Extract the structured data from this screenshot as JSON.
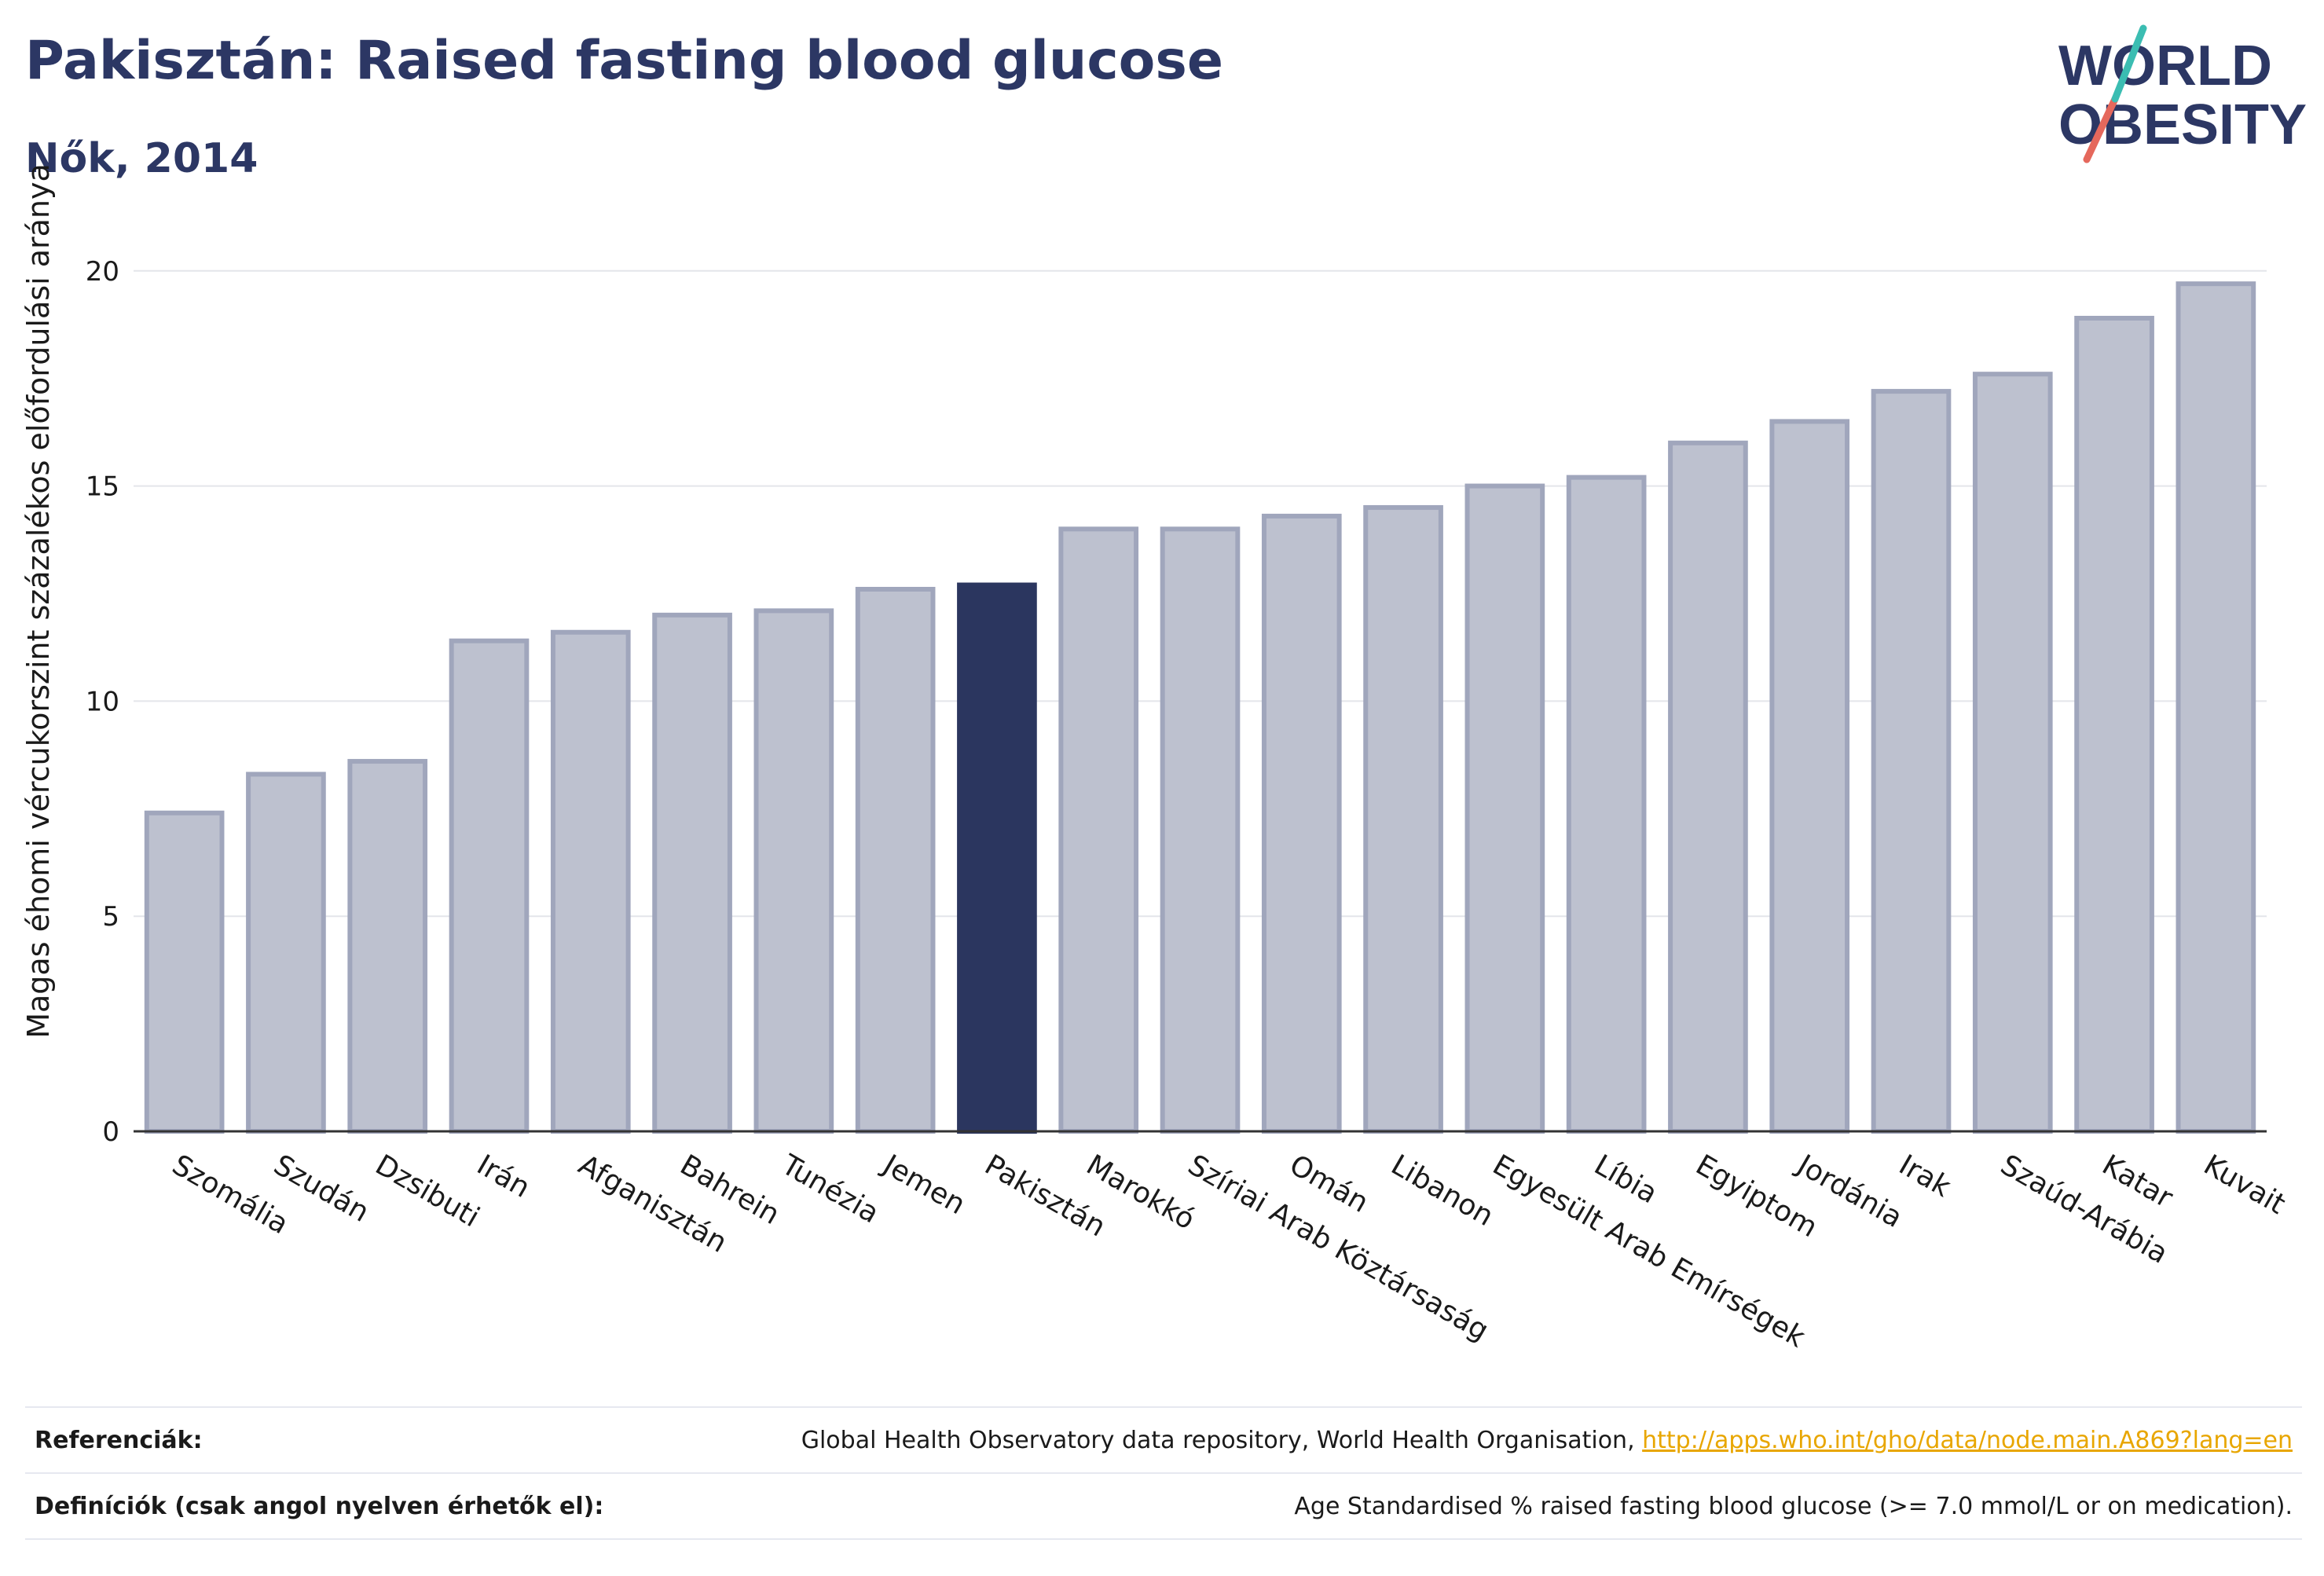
{
  "header": {
    "title": "Pakisztán: Raised fasting blood glucose",
    "subtitle": "Nők, 2014"
  },
  "logo": {
    "line1": "WORLD",
    "line2": "OBESITY"
  },
  "colors": {
    "highlight": "#2b365f",
    "bar_fill": "#bdc1cf",
    "bar_stroke": "#a0a6bc",
    "text": "#2c3764",
    "link": "#e8a600"
  },
  "chart_data": {
    "type": "bar",
    "ylabel": "Magas éhomi vércukorszint százalékos előfordulási aránya",
    "xlabel": "",
    "ylim": [
      0,
      21
    ],
    "yticks": [
      0,
      5,
      10,
      15,
      20
    ],
    "grid": true,
    "highlight": "Pakisztán",
    "categories": [
      "Szomália",
      "Szudán",
      "Dzsibuti",
      "Irán",
      "Afganisztán",
      "Bahrein",
      "Tunézia",
      "Jemen",
      "Pakisztán",
      "Marokkó",
      "Szíriai Arab Köztársaság",
      "Omán",
      "Libanon",
      "Egyesült Arab Emírségek",
      "Líbia",
      "Egyiptom",
      "Jordánia",
      "Irak",
      "Szaúd-Arábia",
      "Katar",
      "Kuvait"
    ],
    "values": [
      7.4,
      8.3,
      8.6,
      11.4,
      11.6,
      12.0,
      12.1,
      12.6,
      12.7,
      14.0,
      14.0,
      14.3,
      14.5,
      15.0,
      15.2,
      16.0,
      16.5,
      17.2,
      17.6,
      18.9,
      19.7
    ]
  },
  "footer": {
    "references_label": "Referenciák:",
    "references_text": "Global Health Observatory data repository, World Health Organisation, ",
    "references_link": "http://apps.who.int/gho/data/node.main.A869?lang=en",
    "definitions_label": "Definíciók (csak angol nyelven érhetők el):",
    "definitions_text": "Age Standardised % raised fasting blood glucose (>= 7.0 mmol/L or on medication)."
  }
}
